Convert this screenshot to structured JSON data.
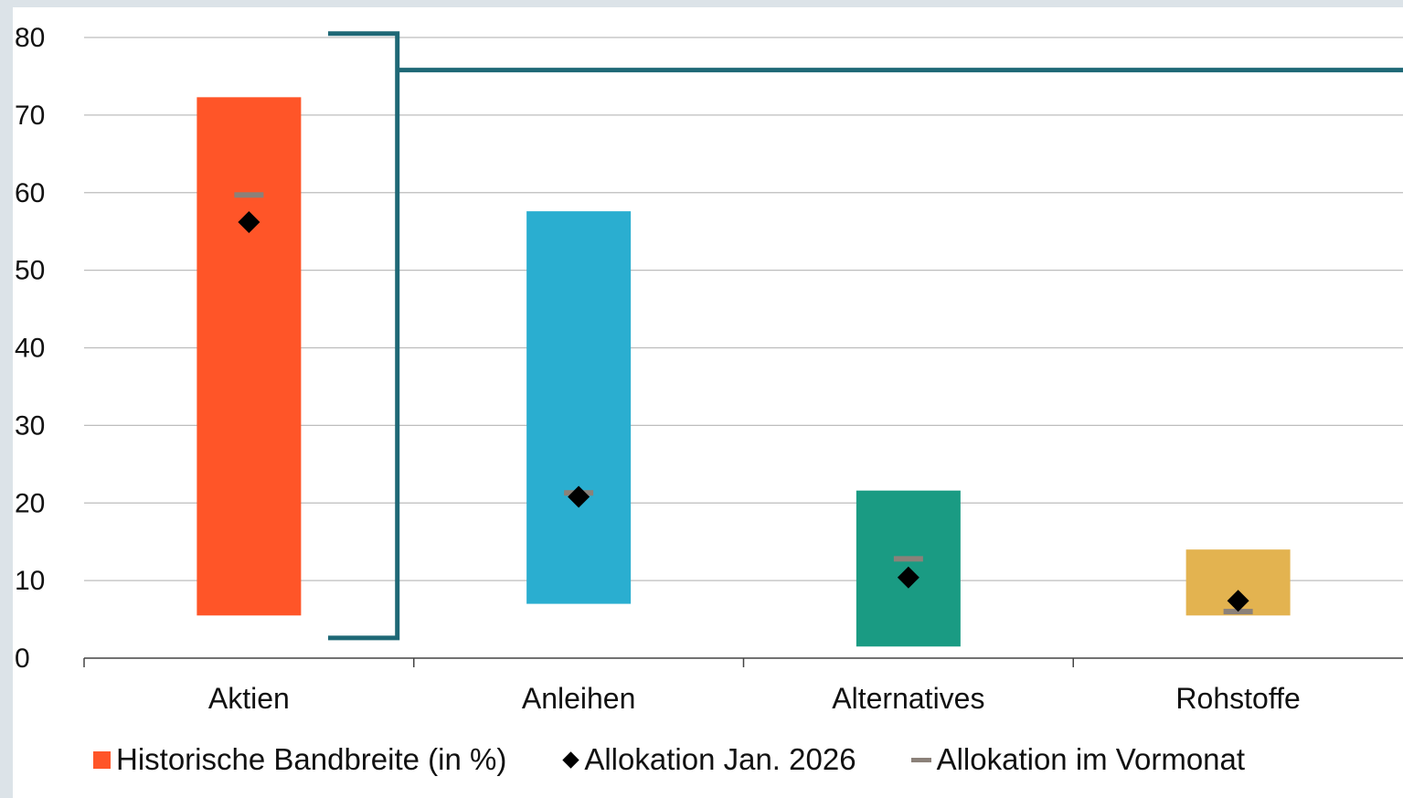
{
  "chart_data": {
    "type": "range-bar",
    "title": "",
    "xlabel": "",
    "ylabel": "",
    "ylim": [
      0,
      80
    ],
    "yticks": [
      "0",
      "10",
      "20",
      "30",
      "40",
      "50",
      "60",
      "70",
      "80"
    ],
    "grid": true,
    "legend_position": "bottom",
    "categories": [
      "Aktien",
      "Anleihen",
      "Alternatives",
      "Rohstoffe"
    ],
    "colors": [
      "#ff5528",
      "#2aaed0",
      "#1a9b83",
      "#e3b350"
    ],
    "series": [
      {
        "name": "Historische Bandbreite (in %)",
        "low": [
          5.5,
          7.0,
          1.5,
          5.5
        ],
        "high": [
          72.3,
          57.6,
          21.6,
          14.0
        ]
      },
      {
        "name": "Allokation Jan. 2026",
        "values": [
          56.2,
          20.8,
          10.4,
          7.4
        ]
      },
      {
        "name": "Allokation im Vormonat",
        "values": [
          59.7,
          21.3,
          12.8,
          6.0
        ]
      }
    ],
    "bracket": {
      "low": 2.6,
      "high": 80.5,
      "line_level": 75.8,
      "color": "#1e6876"
    }
  },
  "colors": {
    "grid": "#bdbdbd",
    "axis": "#444444",
    "vormonat": "#8b8179",
    "diamond": "#000000"
  },
  "legend": [
    {
      "label": "Historische Bandbreite (in %)",
      "color": "#ff5528"
    },
    {
      "label": "Allokation Jan. 2026",
      "color": "#000000"
    },
    {
      "label": "Allokation im Vormonat",
      "color": "#8b8179"
    }
  ]
}
